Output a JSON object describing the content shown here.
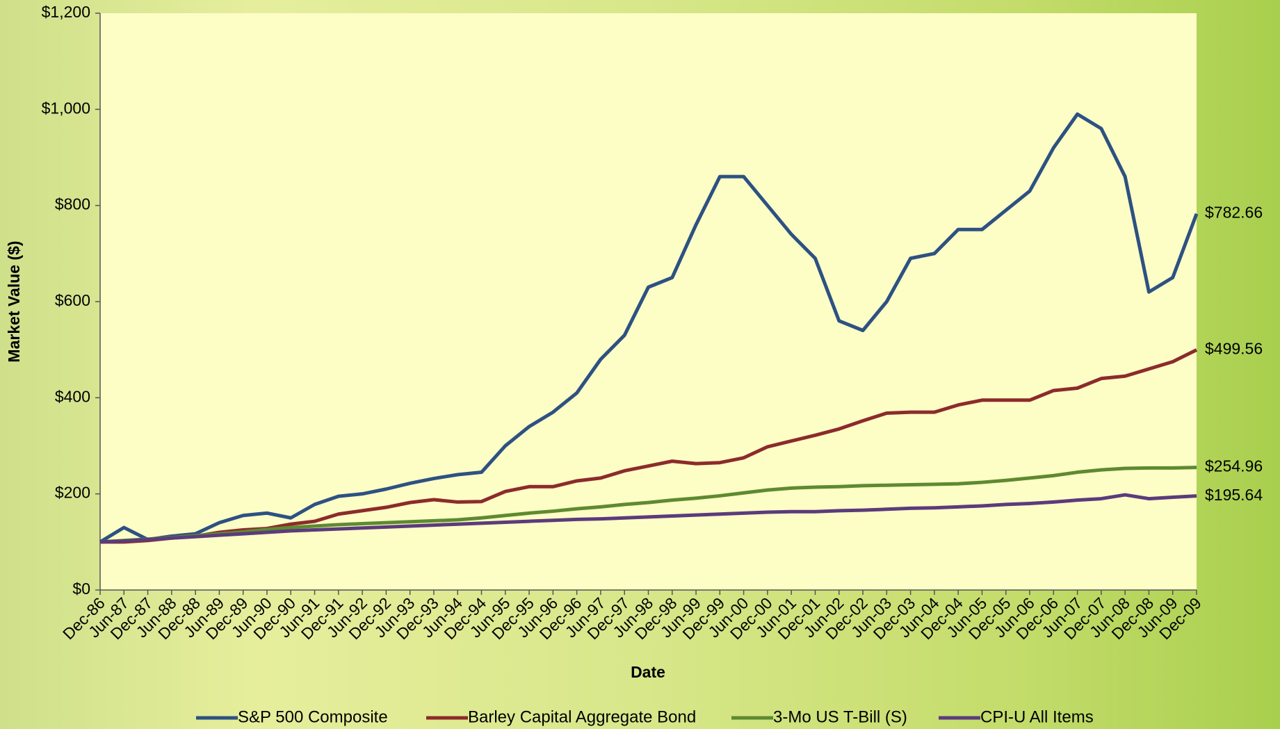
{
  "chart_data": {
    "type": "line",
    "x_label": "Date",
    "y_label": "Market Value ($)",
    "categories": [
      "Dec-86",
      "Jun-87",
      "Dec-87",
      "Jun-88",
      "Dec-88",
      "Jun-89",
      "Dec-89",
      "Jun-90",
      "Dec-90",
      "Jun-91",
      "Dec-91",
      "Jun-92",
      "Dec-92",
      "Jun-93",
      "Dec-93",
      "Jun-94",
      "Dec-94",
      "Jun-95",
      "Dec-95",
      "Jun-96",
      "Dec-96",
      "Jun-97",
      "Dec-97",
      "Jun-98",
      "Dec-98",
      "Jun-99",
      "Dec-99",
      "Jun-00",
      "Dec-00",
      "Jun-01",
      "Dec-01",
      "Jun-02",
      "Dec-02",
      "Jun-03",
      "Dec-03",
      "Jun-04",
      "Dec-04",
      "Jun-05",
      "Dec-05",
      "Jun-06",
      "Dec-06",
      "Jun-07",
      "Dec-07",
      "Jun-08",
      "Dec-08",
      "Jun-09",
      "Dec-09"
    ],
    "series": [
      {
        "name": "S&P  500 Composite",
        "color": "#2d5182",
        "values": [
          100,
          130,
          105,
          112,
          117,
          140,
          155,
          160,
          150,
          178,
          195,
          200,
          210,
          222,
          232,
          240,
          245,
          300,
          340,
          370,
          410,
          480,
          530,
          630,
          650,
          760,
          860,
          860,
          800,
          740,
          690,
          560,
          540,
          600,
          690,
          700,
          750,
          750,
          790,
          830,
          920,
          990,
          960,
          860,
          620,
          650,
          782.66
        ],
        "value_labels": [
          null,
          null,
          null,
          null,
          null,
          null,
          null,
          null,
          null,
          null,
          null,
          null,
          null,
          null,
          null,
          null,
          null,
          null,
          null,
          null,
          null,
          null,
          null,
          null,
          null,
          null,
          null,
          null,
          null,
          null,
          null,
          null,
          null,
          null,
          null,
          null,
          null,
          null,
          null,
          null,
          null,
          null,
          null,
          null,
          null,
          null,
          "$782.66"
        ]
      },
      {
        "name": "Barley Capital Aggregate Bond",
        "color": "#8c2b2b",
        "values": [
          100,
          100,
          103,
          108,
          112,
          120,
          125,
          128,
          137,
          143,
          158,
          165,
          172,
          182,
          188,
          183,
          184,
          205,
          215,
          215,
          227,
          233,
          248,
          258,
          268,
          263,
          265,
          275,
          298,
          310,
          322,
          335,
          352,
          368,
          370,
          370,
          385,
          395,
          395,
          395,
          415,
          420,
          440,
          445,
          460,
          475,
          499.56
        ],
        "value_labels": [
          null,
          null,
          null,
          null,
          null,
          null,
          null,
          null,
          null,
          null,
          null,
          null,
          null,
          null,
          null,
          null,
          null,
          null,
          null,
          null,
          null,
          null,
          null,
          null,
          null,
          null,
          null,
          null,
          null,
          null,
          null,
          null,
          null,
          null,
          null,
          null,
          null,
          null,
          null,
          null,
          null,
          null,
          null,
          null,
          null,
          null,
          "$499.56"
        ]
      },
      {
        "name": "3-Mo US T-Bill (S)",
        "color": "#5e8a30",
        "values": [
          100,
          103,
          106,
          109,
          113,
          117,
          121,
          126,
          130,
          133,
          136,
          138,
          140,
          142,
          144,
          146,
          150,
          155,
          160,
          164,
          169,
          173,
          178,
          182,
          187,
          191,
          196,
          202,
          208,
          212,
          214,
          215,
          217,
          218,
          219,
          220,
          221,
          224,
          228,
          233,
          238,
          245,
          250,
          253,
          254,
          254,
          254.96
        ],
        "value_labels": [
          null,
          null,
          null,
          null,
          null,
          null,
          null,
          null,
          null,
          null,
          null,
          null,
          null,
          null,
          null,
          null,
          null,
          null,
          null,
          null,
          null,
          null,
          null,
          null,
          null,
          null,
          null,
          null,
          null,
          null,
          null,
          null,
          null,
          null,
          null,
          null,
          null,
          null,
          null,
          null,
          null,
          null,
          null,
          null,
          null,
          null,
          "$254.96"
        ]
      },
      {
        "name": "CPI-U All Items",
        "color": "#5b3b7c",
        "values": [
          100,
          102,
          105,
          108,
          111,
          114,
          117,
          120,
          123,
          125,
          127,
          129,
          131,
          133,
          135,
          137,
          139,
          141,
          143,
          145,
          147,
          148,
          150,
          152,
          154,
          156,
          158,
          160,
          162,
          163,
          163,
          165,
          166,
          168,
          170,
          171,
          173,
          175,
          178,
          180,
          183,
          187,
          190,
          198,
          190,
          193,
          195.64
        ],
        "value_labels": [
          null,
          null,
          null,
          null,
          null,
          null,
          null,
          null,
          null,
          null,
          null,
          null,
          null,
          null,
          null,
          null,
          null,
          null,
          null,
          null,
          null,
          null,
          null,
          null,
          null,
          null,
          null,
          null,
          null,
          null,
          null,
          null,
          null,
          null,
          null,
          null,
          null,
          null,
          null,
          null,
          null,
          null,
          null,
          null,
          null,
          null,
          "$195.64"
        ]
      }
    ],
    "ylim": [
      0,
      1200
    ],
    "yticks": [
      {
        "value": 0,
        "label": "$0"
      },
      {
        "value": 200,
        "label": "$200"
      },
      {
        "value": 400,
        "label": "$400"
      },
      {
        "value": 600,
        "label": "$600"
      },
      {
        "value": 800,
        "label": "$800"
      },
      {
        "value": 1000,
        "label": "$1,000"
      },
      {
        "value": 1200,
        "label": "$1,200"
      }
    ],
    "grid": false,
    "legend": "bottom"
  }
}
